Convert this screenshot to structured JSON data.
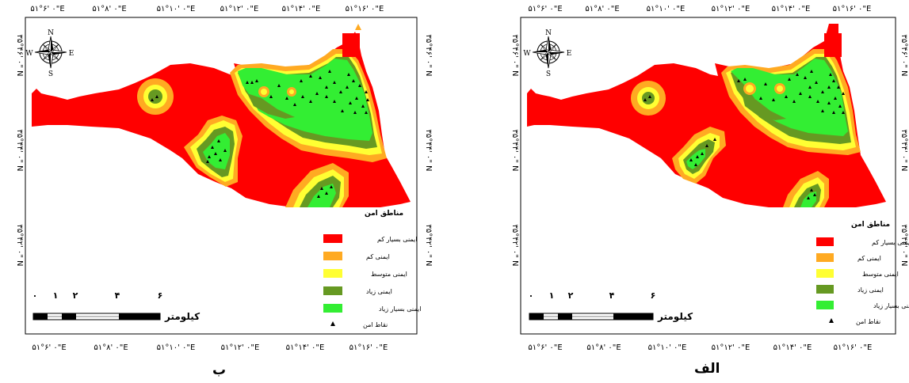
{
  "panels": [
    {
      "caption": "ب",
      "top_ticks": [
        "۵۱°۶' ۰\"E",
        "۵۱°۸' ۰\"E",
        "۵۱°۱۰' ۰\"E",
        "۵۱°۱۲' ۰\"E",
        "۵۱°۱۴' ۰\"E",
        "۵۱°۱۶' ۰\"E"
      ],
      "bottom_ticks": [
        "۵۱°۶' ۰\"E",
        "۵۱°۸' ۰\"E",
        "۵۱°۱۰' ۰\"E",
        "۵۱°۱۲' ۰\"E",
        "۵۱°۱۴' ۰\"E",
        "۵۱°۱۶' ۰\"E"
      ],
      "side_ticks": [
        "۳۵°۴۶' ۰\" N",
        "۳۵°۴۴' ۰\" N",
        "۳۵°۴۲' ۰\" N"
      ]
    },
    {
      "caption": "الف",
      "top_ticks": [
        "۵۱°۶' ۰\"E",
        "۵۱°۸' ۰\"E",
        "۵۱°۱۰' ۰\"E",
        "۵۱°۱۲' ۰\"E",
        "۵۱°۱۴' ۰\"E",
        "۵۱°۱۶' ۰\"E"
      ],
      "bottom_ticks": [
        "۵۱°۶' ۰\"E",
        "۵۱°۸' ۰\"E",
        "۵۱°۱۰' ۰\"E",
        "۵۱°۱۲' ۰\"E",
        "۵۱°۱۴' ۰\"E",
        "۵۱°۱۶' ۰\"E"
      ],
      "side_ticks": [
        "۳۵°۴۶' ۰\" N",
        "۳۵°۴۴' ۰\" N",
        "۳۵°۴۲' ۰\" N"
      ]
    }
  ],
  "legend": {
    "title": "مناطق امن",
    "items": [
      {
        "label": "ایمنی بسیار کم",
        "color": "#ff0000"
      },
      {
        "label": "ایمنی کم",
        "color": "#ffaa22"
      },
      {
        "label": "ایمنی متوسط",
        "color": "#ffff33"
      },
      {
        "label": "ایمنی زیاد",
        "color": "#669922"
      },
      {
        "label": "ایمنی بسیار زیاد",
        "color": "#33ee33"
      }
    ],
    "points_label": "نقاط امن"
  },
  "scale": {
    "numbers": [
      "۰",
      "۱",
      "۲",
      "۴",
      "۶"
    ],
    "unit": "کیلومتر"
  },
  "compass": {
    "n": "N",
    "s": "S",
    "e": "E",
    "w": "W"
  }
}
